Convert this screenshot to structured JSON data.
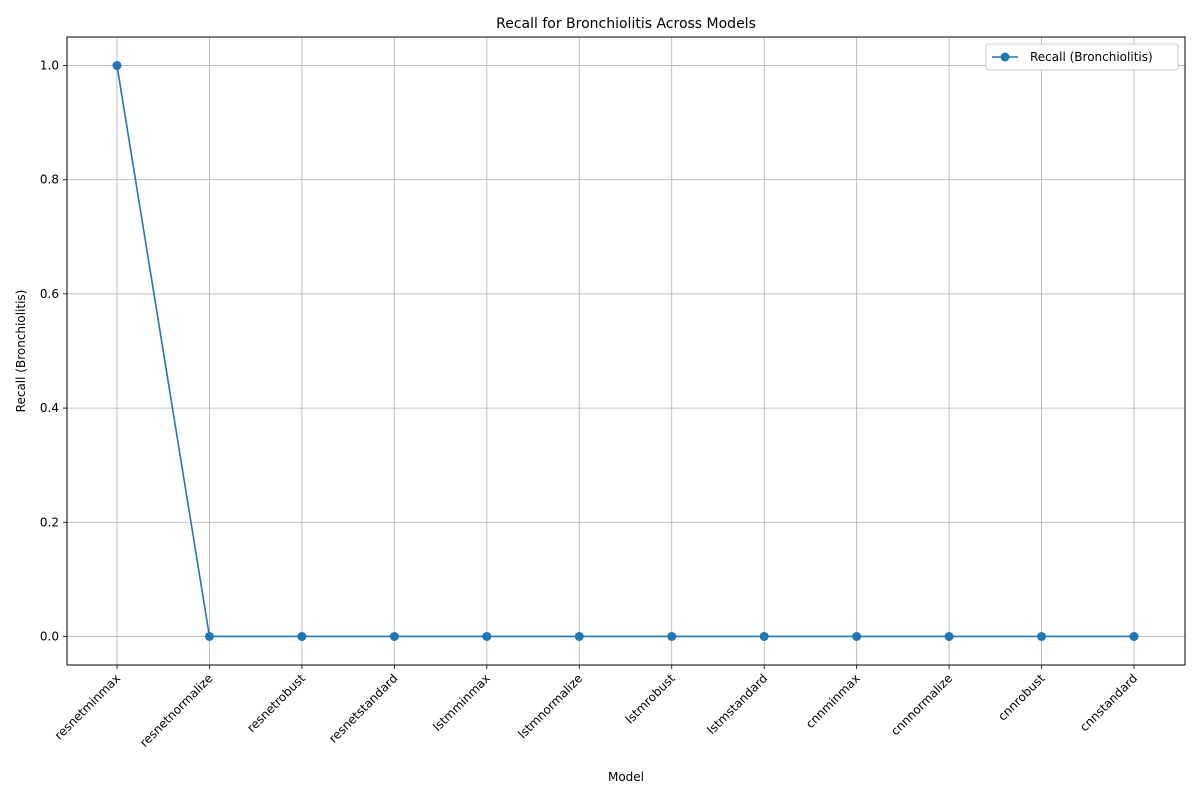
{
  "chart_data": {
    "type": "line",
    "title": "Recall for Bronchiolitis Across Models",
    "xlabel": "Model",
    "ylabel": "Recall (Bronchiolitis)",
    "categories": [
      "resnetminmax",
      "resnetnormalize",
      "resnetrobust",
      "resnetstandard",
      "lstmminmax",
      "lstmnormalize",
      "lstmrobust",
      "lstmstandard",
      "cnnminmax",
      "cnnnormalize",
      "cnnrobust",
      "cnnstandard"
    ],
    "series": [
      {
        "name": "Recall (Bronchiolitis)",
        "values": [
          1.0,
          0.0,
          0.0,
          0.0,
          0.0,
          0.0,
          0.0,
          0.0,
          0.0,
          0.0,
          0.0,
          0.0
        ],
        "color": "#1f77b4",
        "marker": "circle"
      }
    ],
    "yticks": [
      "0.0",
      "0.2",
      "0.4",
      "0.6",
      "0.8",
      "1.0"
    ],
    "ylim": [
      -0.05,
      1.05
    ],
    "grid": true,
    "legend": "top-right"
  }
}
